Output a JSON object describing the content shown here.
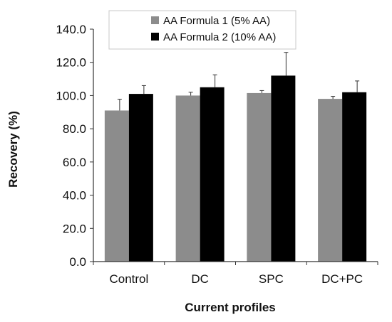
{
  "chart_data": {
    "type": "bar",
    "title": "",
    "xlabel": "Current profiles",
    "ylabel": "Recovery (%)",
    "ylim": [
      0,
      140
    ],
    "yticks": [
      "0.0",
      "20.0",
      "40.0",
      "60.0",
      "80.0",
      "100.0",
      "120.0",
      "140.0"
    ],
    "yticks_values": [
      0,
      20,
      40,
      60,
      80,
      100,
      120,
      140
    ],
    "categories": [
      "Control",
      "DC",
      "SPC",
      "DC+PC"
    ],
    "series": [
      {
        "name": "AA Formula 1 (5% AA)",
        "color": "#8c8c8c",
        "values": [
          91.0,
          100.0,
          101.5,
          98.0
        ],
        "errors": [
          6.8,
          2.0,
          1.5,
          1.5
        ]
      },
      {
        "name": "AA Formula 2 (10% AA)",
        "color": "#000000",
        "values": [
          101.0,
          105.0,
          112.0,
          102.0
        ],
        "errors": [
          5.0,
          7.5,
          14.0,
          6.8
        ]
      }
    ],
    "legend_position": "top",
    "grid": false
  }
}
